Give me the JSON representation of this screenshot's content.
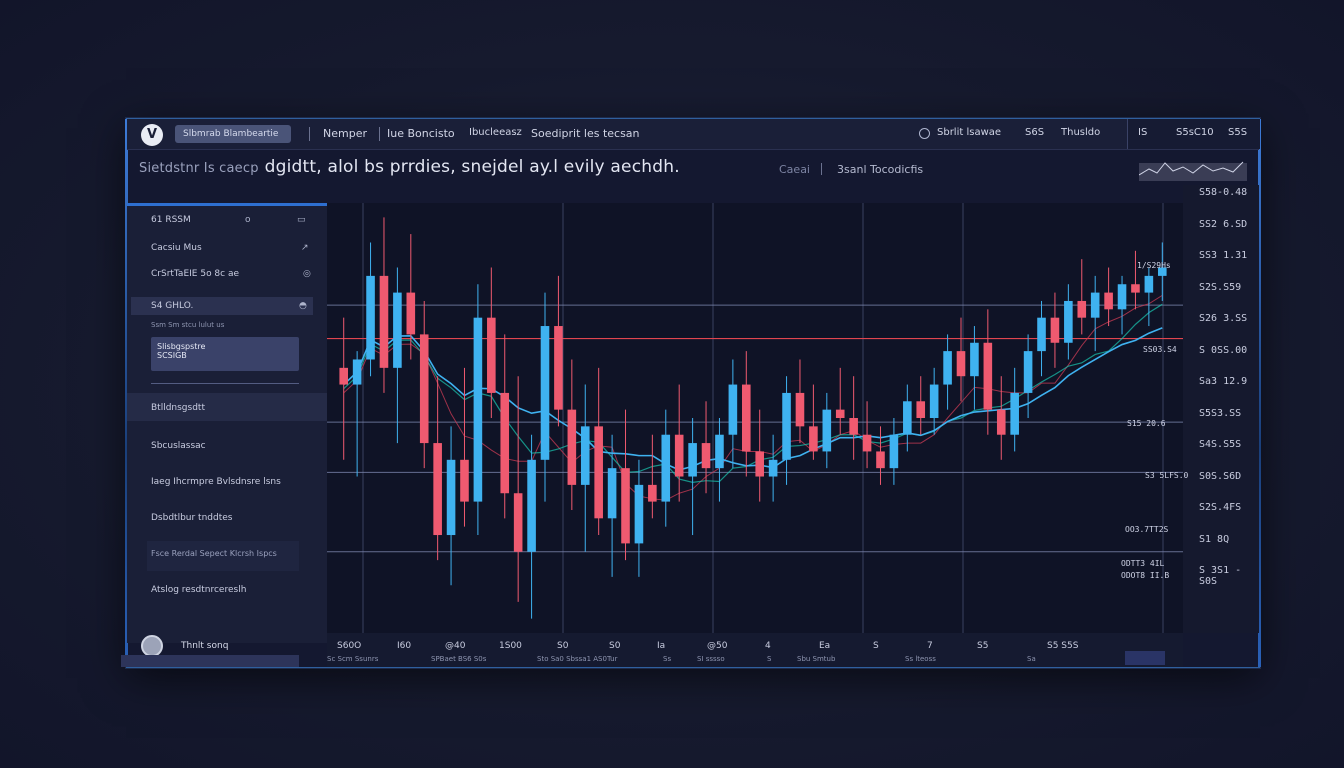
{
  "topbar": {
    "logo": "V",
    "search": "Slbmrab Blambeartie",
    "tabs": [
      "Nemper",
      "Iue Boncisto",
      "Ibucleeasz",
      "Soediprit les tecsan"
    ],
    "controls": [
      "Sbrlit lsawae",
      "S6S",
      "Thusldo"
    ],
    "right_controls": [
      "IS",
      "S5sC10",
      "S5S"
    ]
  },
  "header": {
    "muted_prefix": "Sietdstnr Is caecp",
    "title": "dgidtt, alol bs  prrdies, snejdel ay.l evily aechdh.",
    "sub_left": "Caeai",
    "sub_mid": "3sanl Tocodicfis"
  },
  "sidebar": {
    "items": [
      {
        "label": "61 RSSM",
        "icon1": "o",
        "icon2": "▭"
      },
      {
        "label": "Cacsiu Mus",
        "icon2": "↗"
      },
      {
        "label": "CrSrtTaEIE 5o 8c ae",
        "icon2": "◎"
      },
      {
        "label": "S4 GHLO.",
        "icon2": "◓"
      },
      {
        "label": "Ssm Sm  stcu  lulut us"
      }
    ],
    "card": [
      "Slisbgspstre",
      "SCSIGB"
    ],
    "menu": [
      "Btlldnsgsdtt",
      "Sbcuslassac",
      "Iaeg Ihcrmpre   Bvlsdnsre lsns",
      "Dsbdtlbur tnddtes",
      "Fsce Rerdal Sepect  Klcrsh Ispcs",
      "Atslog  resdtnrcereslh"
    ],
    "user": "Thnlt sonq"
  },
  "y_axis": {
    "labels": [
      "S58-0.48",
      "SS2 6.SD",
      "SS3 1.31",
      "S2S.S59",
      "S26 3.SS",
      "S 0SS.00",
      "Sa3 12.9",
      "S5S3.SS",
      "S4S.S5S",
      "S0S.S6D",
      "S2S.4FS",
      "S1 8Q",
      "S 3S1 - S0S"
    ]
  },
  "price_tags": [
    {
      "text": "1/S29Hs"
    },
    {
      "text": "SS03.S4"
    },
    {
      "text": "S15 20.6"
    },
    {
      "text": "S3 5LFS.0"
    },
    {
      "text": "OO3.7TT2S"
    },
    {
      "text": "ODTT3 4IL"
    },
    {
      "text": "ODOT8 II.B"
    }
  ],
  "x_axis": {
    "labels": [
      "S60O",
      "I60",
      "@40",
      "1S00",
      "S0",
      "S0",
      "Ia",
      "@50",
      "4",
      "Ea",
      "S",
      "7",
      "S5",
      "S5 S5S"
    ],
    "sublabels": [
      "Sc Scm Ssunrs",
      "SPBaet  BS6 S0s",
      "Sto Sa0 Sbssa1 AS0Tur",
      "Ss",
      "SI  sssso",
      "S",
      "Sbu  Smtub",
      "Ss  lteoss",
      "Sa"
    ]
  },
  "chart_data": {
    "type": "candlestick",
    "colors": {
      "up": "#3fb2f0",
      "down": "#ef5a70",
      "ma_fast": "#3fb2f0",
      "ma_slow": "#19c7b0",
      "ma_red": "#c23a52"
    },
    "candles": [
      [
        0.62,
        0.74,
        0.4,
        0.58
      ],
      [
        0.58,
        0.66,
        0.36,
        0.64
      ],
      [
        0.64,
        0.92,
        0.6,
        0.84
      ],
      [
        0.84,
        0.98,
        0.56,
        0.62
      ],
      [
        0.62,
        0.86,
        0.44,
        0.8
      ],
      [
        0.8,
        0.94,
        0.64,
        0.7
      ],
      [
        0.7,
        0.78,
        0.38,
        0.44
      ],
      [
        0.44,
        0.6,
        0.16,
        0.22
      ],
      [
        0.22,
        0.48,
        0.1,
        0.4
      ],
      [
        0.4,
        0.62,
        0.24,
        0.3
      ],
      [
        0.3,
        0.82,
        0.22,
        0.74
      ],
      [
        0.74,
        0.86,
        0.5,
        0.56
      ],
      [
        0.56,
        0.7,
        0.26,
        0.32
      ],
      [
        0.32,
        0.6,
        0.06,
        0.18
      ],
      [
        0.18,
        0.46,
        0.02,
        0.4
      ],
      [
        0.4,
        0.8,
        0.3,
        0.72
      ],
      [
        0.72,
        0.84,
        0.48,
        0.52
      ],
      [
        0.52,
        0.64,
        0.28,
        0.34
      ],
      [
        0.34,
        0.58,
        0.18,
        0.48
      ],
      [
        0.48,
        0.62,
        0.22,
        0.26
      ],
      [
        0.26,
        0.46,
        0.12,
        0.38
      ],
      [
        0.38,
        0.52,
        0.16,
        0.2
      ],
      [
        0.2,
        0.4,
        0.12,
        0.34
      ],
      [
        0.34,
        0.46,
        0.26,
        0.3
      ],
      [
        0.3,
        0.52,
        0.24,
        0.46
      ],
      [
        0.46,
        0.58,
        0.3,
        0.36
      ],
      [
        0.36,
        0.5,
        0.22,
        0.44
      ],
      [
        0.44,
        0.54,
        0.32,
        0.38
      ],
      [
        0.38,
        0.5,
        0.3,
        0.46
      ],
      [
        0.46,
        0.64,
        0.38,
        0.58
      ],
      [
        0.58,
        0.66,
        0.36,
        0.42
      ],
      [
        0.42,
        0.52,
        0.3,
        0.36
      ],
      [
        0.36,
        0.46,
        0.3,
        0.4
      ],
      [
        0.4,
        0.6,
        0.34,
        0.56
      ],
      [
        0.56,
        0.64,
        0.44,
        0.48
      ],
      [
        0.48,
        0.58,
        0.4,
        0.42
      ],
      [
        0.42,
        0.56,
        0.38,
        0.52
      ],
      [
        0.52,
        0.62,
        0.46,
        0.5
      ],
      [
        0.5,
        0.6,
        0.4,
        0.46
      ],
      [
        0.46,
        0.54,
        0.38,
        0.42
      ],
      [
        0.42,
        0.48,
        0.34,
        0.38
      ],
      [
        0.38,
        0.5,
        0.34,
        0.46
      ],
      [
        0.46,
        0.58,
        0.42,
        0.54
      ],
      [
        0.54,
        0.6,
        0.46,
        0.5
      ],
      [
        0.5,
        0.62,
        0.46,
        0.58
      ],
      [
        0.58,
        0.7,
        0.52,
        0.66
      ],
      [
        0.66,
        0.74,
        0.54,
        0.6
      ],
      [
        0.6,
        0.72,
        0.52,
        0.68
      ],
      [
        0.68,
        0.76,
        0.46,
        0.52
      ],
      [
        0.52,
        0.6,
        0.4,
        0.46
      ],
      [
        0.46,
        0.62,
        0.42,
        0.56
      ],
      [
        0.56,
        0.7,
        0.5,
        0.66
      ],
      [
        0.66,
        0.78,
        0.6,
        0.74
      ],
      [
        0.74,
        0.8,
        0.62,
        0.68
      ],
      [
        0.68,
        0.82,
        0.64,
        0.78
      ],
      [
        0.78,
        0.88,
        0.7,
        0.74
      ],
      [
        0.74,
        0.84,
        0.66,
        0.8
      ],
      [
        0.8,
        0.86,
        0.72,
        0.76
      ],
      [
        0.76,
        0.84,
        0.7,
        0.82
      ],
      [
        0.82,
        0.9,
        0.76,
        0.8
      ],
      [
        0.8,
        0.86,
        0.72,
        0.84
      ],
      [
        0.84,
        0.92,
        0.78,
        0.86
      ]
    ],
    "horizontal_levels": {
      "grey": [
        0.77,
        0.49,
        0.37,
        0.18
      ],
      "red": 0.69
    }
  }
}
